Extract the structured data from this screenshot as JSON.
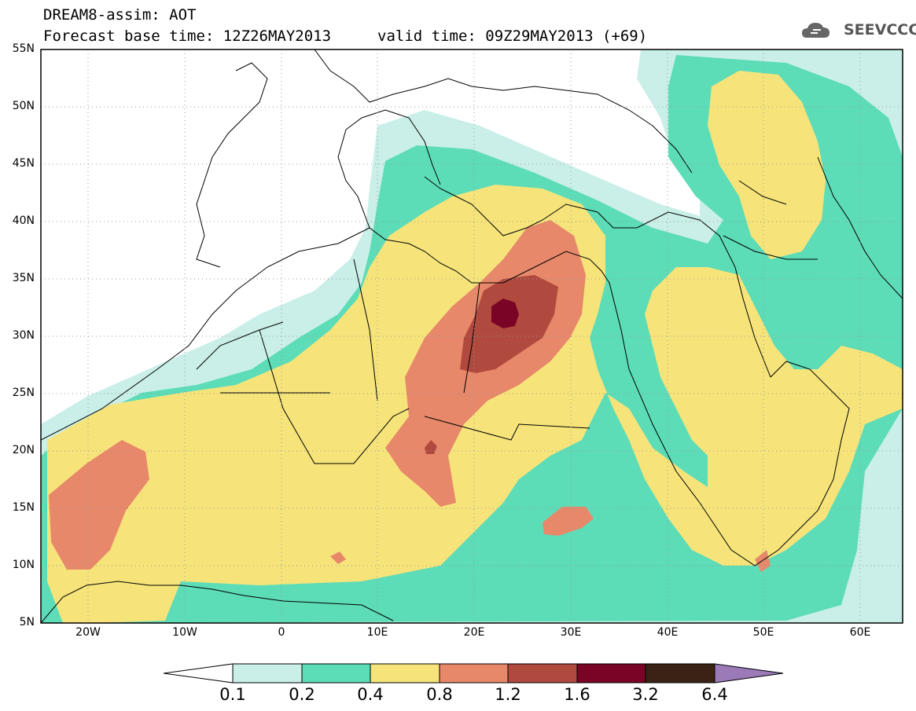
{
  "header": {
    "title_line1": "DREAM8-assim: AOT",
    "base_time": "Forecast base time: 12Z26MAY2013",
    "valid_time": "valid time: 09Z29MAY2013 (+69)"
  },
  "logo": {
    "text": "SEEVCCC",
    "icon": "cloud-icon"
  },
  "map": {
    "lat_labels": [
      "55N",
      "50N",
      "45N",
      "40N",
      "35N",
      "30N",
      "25N",
      "20N",
      "15N",
      "10N",
      "5N"
    ],
    "lon_labels": [
      "20W",
      "10W",
      "0",
      "10E",
      "20E",
      "30E",
      "40E",
      "50E",
      "60E"
    ],
    "colors": {
      "lt_0_1": "#ffffff",
      "c_0_1": "#c9efe8",
      "c_0_2": "#5ddcb8",
      "c_0_4": "#f6e47b",
      "c_0_8": "#e8886a",
      "c_1_2": "#b04a3e",
      "c_1_6": "#7a0425",
      "c_3_2": "#3a2315",
      "c_6_4": "#9c7ab8"
    }
  },
  "colorbar": {
    "labels": [
      "0.1",
      "0.2",
      "0.4",
      "0.8",
      "1.2",
      "1.6",
      "3.2",
      "6.4"
    ],
    "colors": [
      "#c9efe8",
      "#5ddcb8",
      "#f6e47b",
      "#e8886a",
      "#b04a3e",
      "#7a0425",
      "#3a2315"
    ],
    "min_color": "#ffffff",
    "max_color": "#9c7ab8"
  }
}
